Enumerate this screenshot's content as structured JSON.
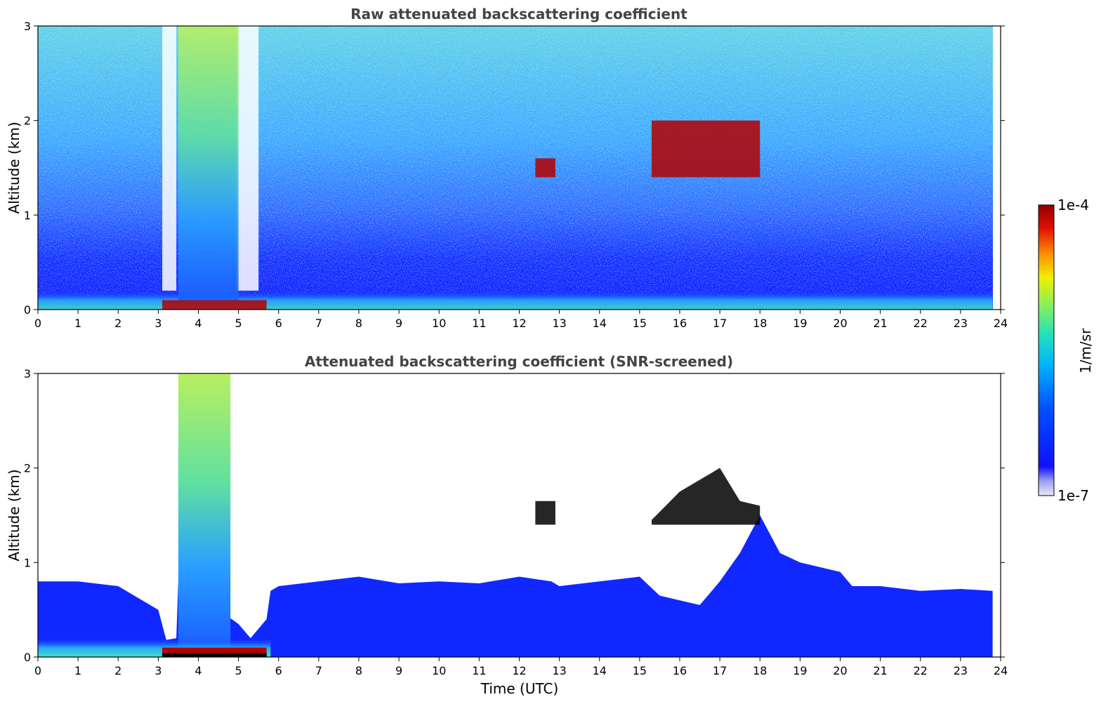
{
  "chart_data": [
    {
      "type": "heatmap",
      "title": "Raw attenuated backscattering coefficient",
      "xlabel": "",
      "ylabel": "Altitude (km)",
      "xlim": [
        0,
        24
      ],
      "ylim": [
        0,
        3
      ],
      "xticks": [
        0,
        1,
        2,
        3,
        4,
        5,
        6,
        7,
        8,
        9,
        10,
        11,
        12,
        13,
        14,
        15,
        16,
        17,
        18,
        19,
        20,
        21,
        22,
        23,
        24
      ],
      "yticks": [
        0,
        1,
        2,
        3
      ],
      "screened": false,
      "features": [
        {
          "name": "surface-layer",
          "x": [
            0,
            23.8
          ],
          "y": [
            0,
            0.2
          ],
          "level": "green"
        },
        {
          "name": "low-dense-layer",
          "x": [
            3.1,
            5.7
          ],
          "y": [
            0,
            0.1
          ],
          "level": "red"
        },
        {
          "name": "column-plume",
          "x": [
            3.5,
            5.0
          ],
          "y": [
            0.1,
            3.0
          ],
          "level": "green-yellow"
        },
        {
          "name": "cloud-small",
          "x": [
            12.4,
            12.9
          ],
          "y": [
            1.4,
            1.6
          ],
          "level": "red"
        },
        {
          "name": "cloud-patch",
          "x": [
            15.3,
            18.0
          ],
          "y": [
            1.4,
            2.0
          ],
          "level": "red"
        }
      ]
    },
    {
      "type": "heatmap",
      "title": "Attenuated backscattering coefficient (SNR-screened)",
      "xlabel": "Time (UTC)",
      "ylabel": "Altitude (km)",
      "xlim": [
        0,
        24
      ],
      "ylim": [
        0,
        3
      ],
      "xticks": [
        0,
        1,
        2,
        3,
        4,
        5,
        6,
        7,
        8,
        9,
        10,
        11,
        12,
        13,
        14,
        15,
        16,
        17,
        18,
        19,
        20,
        21,
        22,
        23,
        24
      ],
      "yticks": [
        0,
        1,
        2,
        3
      ],
      "screened": true,
      "boundary_layer_top": [
        [
          0,
          0.8
        ],
        [
          1,
          0.8
        ],
        [
          2,
          0.75
        ],
        [
          3,
          0.5
        ],
        [
          3.2,
          0.18
        ],
        [
          3.45,
          0.2
        ],
        [
          3.5,
          0.8
        ],
        [
          5,
          0.35
        ],
        [
          5.3,
          0.2
        ],
        [
          5.7,
          0.4
        ],
        [
          5.8,
          0.7
        ],
        [
          6,
          0.75
        ],
        [
          7,
          0.8
        ],
        [
          8,
          0.85
        ],
        [
          9,
          0.78
        ],
        [
          10,
          0.8
        ],
        [
          11,
          0.78
        ],
        [
          12,
          0.85
        ],
        [
          12.8,
          0.8
        ],
        [
          13,
          0.75
        ],
        [
          14,
          0.8
        ],
        [
          15,
          0.85
        ],
        [
          15.5,
          0.65
        ],
        [
          16,
          0.6
        ],
        [
          16.5,
          0.55
        ],
        [
          17,
          0.8
        ],
        [
          17.5,
          1.1
        ],
        [
          18,
          1.5
        ],
        [
          18.5,
          1.1
        ],
        [
          19,
          1.0
        ],
        [
          20,
          0.9
        ],
        [
          20.3,
          0.75
        ],
        [
          21,
          0.75
        ],
        [
          22,
          0.7
        ],
        [
          23,
          0.72
        ],
        [
          23.8,
          0.7
        ]
      ]
    }
  ],
  "colorbar": {
    "label": "1/m/sr",
    "max_label": "1e-4",
    "min_label": "1e-7",
    "scale": "log",
    "colormap": "jet"
  },
  "colors": {
    "background": "#ffffff",
    "low": "#0a1aff",
    "mid": "#00d4ff",
    "high": "#b30000"
  }
}
